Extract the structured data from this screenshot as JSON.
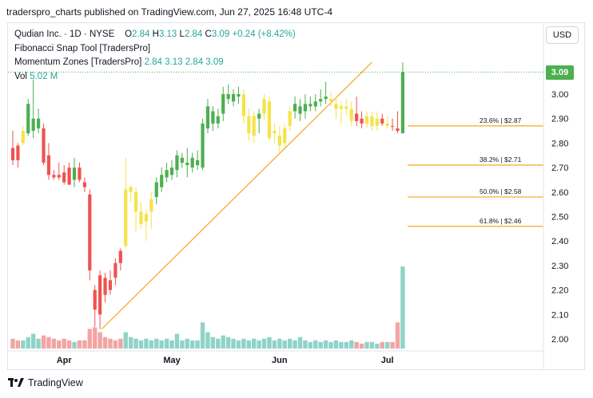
{
  "caption": "traderspro_charts published on TradingView.com, Jun 27, 2025 16:48 UTC-4",
  "legend": {
    "symbol": "Qudian Inc. · 1D · NYSE",
    "o_label": "O",
    "o_value": "2.84",
    "h_label": "H",
    "h_value": "3.13",
    "l_label": "L",
    "l_value": "2.84",
    "c_label": "C",
    "c_value": "3.09",
    "change": "+0.24 (+8.42%)",
    "indicator1": "Fibonacci Snap Tool [TradersPro]",
    "indicator2": "Momentum Zones [TradersPro]",
    "indicator2_values": "2.84 3.13 2.84 3.09",
    "vol_label": "Vol",
    "vol_value": "5.02 M"
  },
  "currency": "USD",
  "last_price": "3.09",
  "footer": "TradingView",
  "colors": {
    "up": "#4caf50",
    "down": "#ef5350",
    "yellow": "#f5e34a",
    "vol_up": "#8fd3c8",
    "vol_down": "#f2a5a3",
    "fib": "#f5a623",
    "trend": "#f5a623"
  },
  "chart_data": {
    "type": "candlestick",
    "y_ticks": [
      "3.00",
      "2.90",
      "2.80",
      "2.70",
      "2.60",
      "2.50",
      "2.40",
      "2.30",
      "2.20",
      "2.10",
      "2.00"
    ],
    "ylim": [
      1.97,
      3.19
    ],
    "x_labels": [
      {
        "label": "Apr",
        "index": 10
      },
      {
        "label": "May",
        "index": 31
      },
      {
        "label": "Jun",
        "index": 52
      },
      {
        "label": "Jul",
        "index": 73
      }
    ],
    "fib_levels": [
      {
        "label": "23.6% | $2.87",
        "value": 2.87
      },
      {
        "label": "38.2% | $2.71",
        "value": 2.71
      },
      {
        "label": "50.0% | $2.58",
        "value": 2.58
      },
      {
        "label": "61.8% | $2.46",
        "value": 2.46
      }
    ],
    "trendline": {
      "from": [
        17,
        2.04
      ],
      "to": [
        70,
        3.13
      ]
    },
    "candles": [
      {
        "o": 2.78,
        "h": 2.85,
        "l": 2.71,
        "c": 2.73,
        "col": "down",
        "v": 0.6
      },
      {
        "o": 2.73,
        "h": 2.8,
        "l": 2.7,
        "c": 2.79,
        "col": "down",
        "v": 0.5
      },
      {
        "o": 2.8,
        "h": 2.87,
        "l": 2.79,
        "c": 2.85,
        "col": "yellow",
        "v": 0.5
      },
      {
        "o": 2.84,
        "h": 2.98,
        "l": 2.83,
        "c": 2.96,
        "col": "up",
        "v": 0.7
      },
      {
        "o": 2.85,
        "h": 3.06,
        "l": 2.82,
        "c": 2.9,
        "col": "up",
        "v": 0.9
      },
      {
        "o": 2.9,
        "h": 2.94,
        "l": 2.84,
        "c": 2.86,
        "col": "up",
        "v": 0.6
      },
      {
        "o": 2.86,
        "h": 2.88,
        "l": 2.71,
        "c": 2.72,
        "col": "down",
        "v": 0.8
      },
      {
        "o": 2.75,
        "h": 2.8,
        "l": 2.65,
        "c": 2.67,
        "col": "down",
        "v": 0.7
      },
      {
        "o": 2.67,
        "h": 2.69,
        "l": 2.65,
        "c": 2.66,
        "col": "down",
        "v": 0.6
      },
      {
        "o": 2.67,
        "h": 2.72,
        "l": 2.65,
        "c": 2.66,
        "col": "down",
        "v": 0.5
      },
      {
        "o": 2.68,
        "h": 2.71,
        "l": 2.63,
        "c": 2.64,
        "col": "down",
        "v": 0.6
      },
      {
        "o": 2.7,
        "h": 2.72,
        "l": 2.63,
        "c": 2.63,
        "col": "down",
        "v": 0.5
      },
      {
        "o": 2.65,
        "h": 2.74,
        "l": 2.62,
        "c": 2.7,
        "col": "up",
        "v": 0.4
      },
      {
        "o": 2.7,
        "h": 2.72,
        "l": 2.64,
        "c": 2.65,
        "col": "down",
        "v": 0.5
      },
      {
        "o": 2.64,
        "h": 2.66,
        "l": 2.6,
        "c": 2.62,
        "col": "down",
        "v": 0.5
      },
      {
        "o": 2.59,
        "h": 2.61,
        "l": 2.24,
        "c": 2.28,
        "col": "down",
        "v": 1.2
      },
      {
        "o": 2.2,
        "h": 2.22,
        "l": 2.05,
        "c": 2.12,
        "col": "down",
        "v": 1.3
      },
      {
        "o": 2.1,
        "h": 2.28,
        "l": 2.04,
        "c": 2.26,
        "col": "down",
        "v": 1.0
      },
      {
        "o": 2.25,
        "h": 2.27,
        "l": 2.15,
        "c": 2.18,
        "col": "down",
        "v": 0.7
      },
      {
        "o": 2.2,
        "h": 2.28,
        "l": 2.18,
        "c": 2.24,
        "col": "down",
        "v": 0.6
      },
      {
        "o": 2.25,
        "h": 2.33,
        "l": 2.22,
        "c": 2.31,
        "col": "down",
        "v": 0.5
      },
      {
        "o": 2.31,
        "h": 2.37,
        "l": 2.28,
        "c": 2.36,
        "col": "down",
        "v": 0.6
      },
      {
        "o": 2.38,
        "h": 2.74,
        "l": 2.37,
        "c": 2.61,
        "col": "yellow",
        "v": 1.0
      },
      {
        "o": 2.6,
        "h": 2.63,
        "l": 2.56,
        "c": 2.62,
        "col": "yellow",
        "v": 0.7
      },
      {
        "o": 2.6,
        "h": 2.62,
        "l": 2.44,
        "c": 2.52,
        "col": "yellow",
        "v": 0.6
      },
      {
        "o": 2.52,
        "h": 2.56,
        "l": 2.45,
        "c": 2.47,
        "col": "yellow",
        "v": 0.5
      },
      {
        "o": 2.48,
        "h": 2.53,
        "l": 2.4,
        "c": 2.51,
        "col": "yellow",
        "v": 0.6
      },
      {
        "o": 2.52,
        "h": 2.6,
        "l": 2.45,
        "c": 2.57,
        "col": "yellow",
        "v": 0.5
      },
      {
        "o": 2.58,
        "h": 2.66,
        "l": 2.55,
        "c": 2.64,
        "col": "up",
        "v": 0.6
      },
      {
        "o": 2.62,
        "h": 2.7,
        "l": 2.6,
        "c": 2.67,
        "col": "up",
        "v": 0.5
      },
      {
        "o": 2.66,
        "h": 2.72,
        "l": 2.64,
        "c": 2.69,
        "col": "up",
        "v": 0.6
      },
      {
        "o": 2.67,
        "h": 2.73,
        "l": 2.65,
        "c": 2.7,
        "col": "up",
        "v": 0.5
      },
      {
        "o": 2.69,
        "h": 2.77,
        "l": 2.66,
        "c": 2.75,
        "col": "up",
        "v": 0.9
      },
      {
        "o": 2.74,
        "h": 2.76,
        "l": 2.7,
        "c": 2.72,
        "col": "up",
        "v": 0.5
      },
      {
        "o": 2.72,
        "h": 2.78,
        "l": 2.66,
        "c": 2.71,
        "col": "up",
        "v": 0.6
      },
      {
        "o": 2.7,
        "h": 2.76,
        "l": 2.68,
        "c": 2.74,
        "col": "up",
        "v": 0.5
      },
      {
        "o": 2.73,
        "h": 2.77,
        "l": 2.69,
        "c": 2.71,
        "col": "up",
        "v": 0.5
      },
      {
        "o": 2.7,
        "h": 2.9,
        "l": 2.69,
        "c": 2.88,
        "col": "up",
        "v": 1.6
      },
      {
        "o": 2.86,
        "h": 2.98,
        "l": 2.84,
        "c": 2.95,
        "col": "up",
        "v": 1.0
      },
      {
        "o": 2.93,
        "h": 2.95,
        "l": 2.85,
        "c": 2.88,
        "col": "up",
        "v": 0.7
      },
      {
        "o": 2.88,
        "h": 2.94,
        "l": 2.86,
        "c": 2.91,
        "col": "up",
        "v": 0.6
      },
      {
        "o": 2.92,
        "h": 3.03,
        "l": 2.89,
        "c": 3.0,
        "col": "up",
        "v": 0.8
      },
      {
        "o": 3.0,
        "h": 3.04,
        "l": 2.96,
        "c": 2.98,
        "col": "up",
        "v": 0.7
      },
      {
        "o": 2.97,
        "h": 3.02,
        "l": 2.95,
        "c": 3.0,
        "col": "up",
        "v": 0.6
      },
      {
        "o": 3.0,
        "h": 3.03,
        "l": 2.96,
        "c": 2.99,
        "col": "up",
        "v": 0.5
      },
      {
        "o": 3.0,
        "h": 3.02,
        "l": 2.88,
        "c": 2.91,
        "col": "yellow",
        "v": 0.6
      },
      {
        "o": 2.91,
        "h": 2.94,
        "l": 2.81,
        "c": 2.84,
        "col": "yellow",
        "v": 0.5
      },
      {
        "o": 2.83,
        "h": 2.93,
        "l": 2.8,
        "c": 2.91,
        "col": "yellow",
        "v": 0.6
      },
      {
        "o": 2.9,
        "h": 2.94,
        "l": 2.84,
        "c": 2.92,
        "col": "up",
        "v": 0.5
      },
      {
        "o": 2.92,
        "h": 3.0,
        "l": 2.89,
        "c": 2.98,
        "col": "yellow",
        "v": 0.6
      },
      {
        "o": 2.97,
        "h": 2.99,
        "l": 2.81,
        "c": 2.82,
        "col": "yellow",
        "v": 0.7
      },
      {
        "o": 2.84,
        "h": 2.88,
        "l": 2.8,
        "c": 2.85,
        "col": "yellow",
        "v": 0.5
      },
      {
        "o": 2.83,
        "h": 2.87,
        "l": 2.76,
        "c": 2.79,
        "col": "yellow",
        "v": 0.6
      },
      {
        "o": 2.8,
        "h": 2.88,
        "l": 2.78,
        "c": 2.86,
        "col": "yellow",
        "v": 0.5
      },
      {
        "o": 2.87,
        "h": 2.95,
        "l": 2.85,
        "c": 2.93,
        "col": "yellow",
        "v": 0.6
      },
      {
        "o": 2.93,
        "h": 2.99,
        "l": 2.9,
        "c": 2.96,
        "col": "up",
        "v": 0.5
      },
      {
        "o": 2.95,
        "h": 2.98,
        "l": 2.89,
        "c": 2.92,
        "col": "up",
        "v": 0.7
      },
      {
        "o": 2.93,
        "h": 3.0,
        "l": 2.9,
        "c": 2.96,
        "col": "up",
        "v": 0.5
      },
      {
        "o": 2.96,
        "h": 2.99,
        "l": 2.93,
        "c": 2.95,
        "col": "up",
        "v": 0.4
      },
      {
        "o": 2.95,
        "h": 3.0,
        "l": 2.93,
        "c": 2.97,
        "col": "up",
        "v": 0.5
      },
      {
        "o": 2.97,
        "h": 3.02,
        "l": 2.95,
        "c": 2.98,
        "col": "up",
        "v": 0.4
      },
      {
        "o": 2.99,
        "h": 3.05,
        "l": 2.96,
        "c": 2.98,
        "col": "up",
        "v": 0.5
      },
      {
        "o": 2.98,
        "h": 3.01,
        "l": 2.95,
        "c": 2.97,
        "col": "yellow",
        "v": 0.4
      },
      {
        "o": 2.96,
        "h": 2.99,
        "l": 2.9,
        "c": 2.94,
        "col": "yellow",
        "v": 0.5
      },
      {
        "o": 2.94,
        "h": 2.97,
        "l": 2.88,
        "c": 2.95,
        "col": "yellow",
        "v": 0.4
      },
      {
        "o": 2.95,
        "h": 2.98,
        "l": 2.91,
        "c": 2.94,
        "col": "yellow",
        "v": 0.4
      },
      {
        "o": 2.94,
        "h": 2.97,
        "l": 2.87,
        "c": 2.89,
        "col": "yellow",
        "v": 0.5
      },
      {
        "o": 2.92,
        "h": 2.99,
        "l": 2.87,
        "c": 2.89,
        "col": "down",
        "v": 0.4
      },
      {
        "o": 2.9,
        "h": 2.93,
        "l": 2.86,
        "c": 2.88,
        "col": "down",
        "v": 0.3
      },
      {
        "o": 2.88,
        "h": 2.93,
        "l": 2.86,
        "c": 2.91,
        "col": "yellow",
        "v": 0.4
      },
      {
        "o": 2.91,
        "h": 2.93,
        "l": 2.85,
        "c": 2.87,
        "col": "yellow",
        "v": 0.4
      },
      {
        "o": 2.87,
        "h": 2.93,
        "l": 2.85,
        "c": 2.9,
        "col": "yellow",
        "v": 0.3
      },
      {
        "o": 2.9,
        "h": 2.92,
        "l": 2.87,
        "c": 2.88,
        "col": "down",
        "v": 0.4
      },
      {
        "o": 2.88,
        "h": 2.91,
        "l": 2.86,
        "c": 2.87,
        "col": "yellow",
        "v": 0.4
      },
      {
        "o": 2.87,
        "h": 2.9,
        "l": 2.85,
        "c": 2.87,
        "col": "down",
        "v": 0.4
      },
      {
        "o": 2.86,
        "h": 2.93,
        "l": 2.84,
        "c": 2.85,
        "col": "down",
        "v": 1.6
      },
      {
        "o": 2.84,
        "h": 3.13,
        "l": 2.84,
        "c": 3.09,
        "col": "up",
        "v": 5.02
      }
    ]
  }
}
